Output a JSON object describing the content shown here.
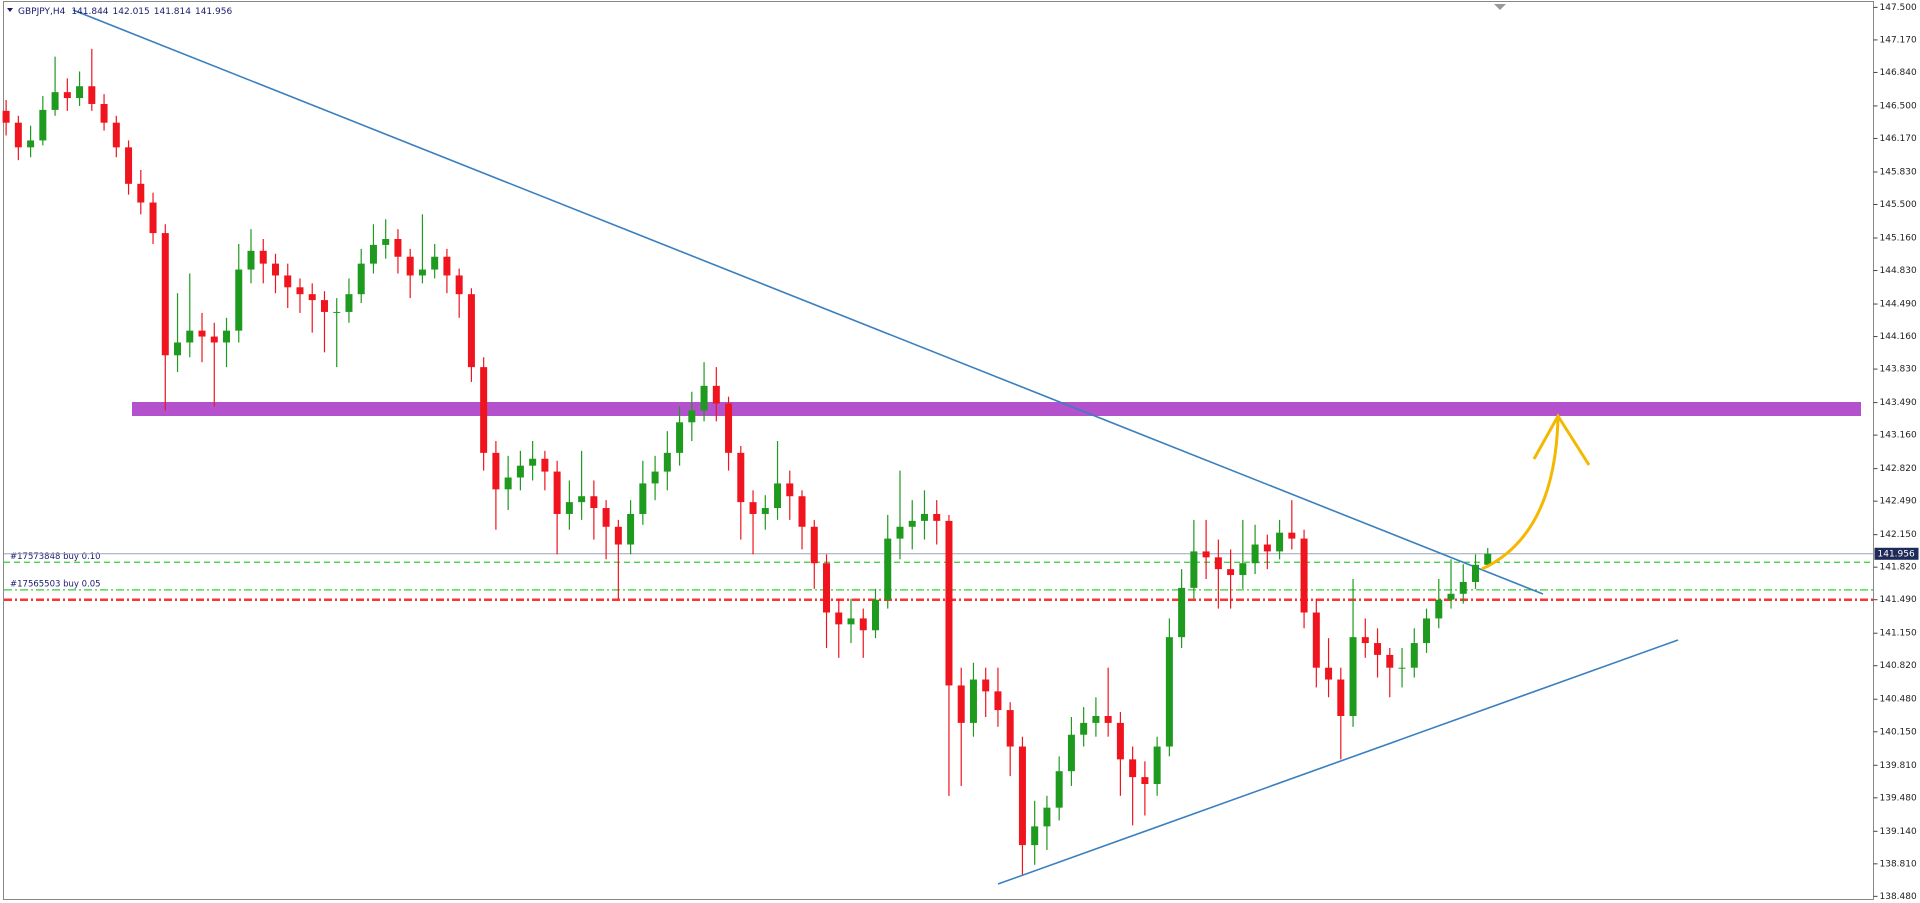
{
  "chart_data": {
    "type": "candlestick",
    "title": "GBPJPY,H4",
    "up_color": "#1e9a1e",
    "down_color": "#f0141e",
    "ylim": [
      138.443,
      147.575
    ],
    "yticks": [
      {
        "value": 147.5,
        "label": "147.500"
      },
      {
        "value": 147.17,
        "label": "147.170"
      },
      {
        "value": 146.84,
        "label": "146.840"
      },
      {
        "value": 146.5,
        "label": "146.500"
      },
      {
        "value": 146.17,
        "label": "146.170"
      },
      {
        "value": 145.83,
        "label": "145.830"
      },
      {
        "value": 145.5,
        "label": "145.500"
      },
      {
        "value": 145.16,
        "label": "145.160"
      },
      {
        "value": 144.83,
        "label": "144.830"
      },
      {
        "value": 144.49,
        "label": "144.490"
      },
      {
        "value": 144.16,
        "label": "144.160"
      },
      {
        "value": 143.83,
        "label": "143.830"
      },
      {
        "value": 143.49,
        "label": "143.490"
      },
      {
        "value": 143.16,
        "label": "143.160"
      },
      {
        "value": 142.82,
        "label": "142.820"
      },
      {
        "value": 142.49,
        "label": "142.490"
      },
      {
        "value": 142.15,
        "label": "142.150"
      },
      {
        "value": 141.82,
        "label": "141.820"
      },
      {
        "value": 141.49,
        "label": "141.490"
      },
      {
        "value": 141.15,
        "label": "141.150"
      },
      {
        "value": 140.82,
        "label": "140.820"
      },
      {
        "value": 140.48,
        "label": "140.480"
      },
      {
        "value": 140.15,
        "label": "140.150"
      },
      {
        "value": 139.81,
        "label": "139.810"
      },
      {
        "value": 139.48,
        "label": "139.480"
      },
      {
        "value": 139.14,
        "label": "139.140"
      },
      {
        "value": 138.81,
        "label": "138.810"
      },
      {
        "value": 138.48,
        "label": "138.480"
      }
    ],
    "orders": [
      {
        "label": "#17573848 buy 0.10",
        "price": 141.87,
        "color": "#33cc33",
        "dash": "6,4"
      },
      {
        "label": "#17565503 buy 0.05",
        "price": 141.59,
        "color": "#33cc33",
        "dash": "8,3,2,3"
      }
    ],
    "stop_line": {
      "price": 141.49,
      "color": "#ff3333",
      "dash": "8,3,2,3"
    },
    "candles": [
      [
        146.45,
        146.56,
        146.2,
        146.33
      ],
      [
        146.33,
        146.4,
        145.95,
        146.08
      ],
      [
        146.08,
        146.3,
        145.98,
        146.15
      ],
      [
        146.15,
        146.6,
        146.1,
        146.46
      ],
      [
        146.46,
        147.0,
        146.4,
        146.64
      ],
      [
        146.64,
        146.78,
        146.45,
        146.58
      ],
      [
        146.58,
        146.85,
        146.5,
        146.7
      ],
      [
        146.7,
        147.08,
        146.45,
        146.52
      ],
      [
        146.52,
        146.62,
        146.25,
        146.33
      ],
      [
        146.33,
        146.4,
        145.98,
        146.08
      ],
      [
        146.08,
        146.15,
        145.6,
        145.71
      ],
      [
        145.71,
        145.85,
        145.4,
        145.52
      ],
      [
        145.52,
        145.62,
        145.1,
        145.21
      ],
      [
        145.21,
        145.3,
        143.41,
        143.97
      ],
      [
        143.97,
        144.6,
        143.8,
        144.1
      ],
      [
        144.1,
        144.8,
        143.95,
        144.22
      ],
      [
        144.22,
        144.4,
        143.9,
        144.16
      ],
      [
        144.16,
        144.3,
        143.45,
        144.1
      ],
      [
        144.1,
        144.35,
        143.85,
        144.22
      ],
      [
        144.22,
        145.1,
        144.1,
        144.84
      ],
      [
        144.84,
        145.25,
        144.7,
        145.03
      ],
      [
        145.03,
        145.15,
        144.7,
        144.9
      ],
      [
        144.9,
        145.0,
        144.6,
        144.78
      ],
      [
        144.78,
        144.9,
        144.45,
        144.66
      ],
      [
        144.66,
        144.75,
        144.4,
        144.59
      ],
      [
        144.59,
        144.7,
        144.2,
        144.53
      ],
      [
        144.53,
        144.62,
        144.0,
        144.41
      ],
      [
        144.41,
        144.55,
        143.85,
        144.41
      ],
      [
        144.41,
        144.75,
        144.3,
        144.59
      ],
      [
        144.59,
        145.05,
        144.5,
        144.9
      ],
      [
        144.9,
        145.3,
        144.8,
        145.09
      ],
      [
        145.09,
        145.35,
        144.95,
        145.15
      ],
      [
        145.15,
        145.25,
        144.8,
        144.97
      ],
      [
        144.97,
        145.05,
        144.55,
        144.78
      ],
      [
        144.78,
        145.4,
        144.7,
        144.84
      ],
      [
        144.84,
        145.1,
        144.75,
        144.97
      ],
      [
        144.97,
        145.05,
        144.6,
        144.78
      ],
      [
        144.78,
        144.85,
        144.35,
        144.59
      ],
      [
        144.59,
        144.65,
        143.7,
        143.85
      ],
      [
        143.85,
        143.95,
        142.8,
        142.98
      ],
      [
        142.98,
        143.1,
        142.2,
        142.61
      ],
      [
        142.61,
        142.95,
        142.4,
        142.73
      ],
      [
        142.73,
        143.0,
        142.6,
        142.85
      ],
      [
        142.85,
        143.1,
        142.7,
        142.92
      ],
      [
        142.92,
        143.0,
        142.6,
        142.79
      ],
      [
        142.79,
        142.9,
        141.95,
        142.36
      ],
      [
        142.36,
        142.7,
        142.2,
        142.48
      ],
      [
        142.48,
        143.0,
        142.3,
        142.54
      ],
      [
        142.54,
        142.7,
        142.1,
        142.42
      ],
      [
        142.42,
        142.5,
        141.9,
        142.23
      ],
      [
        142.23,
        142.3,
        141.5,
        142.05
      ],
      [
        142.05,
        142.5,
        141.95,
        142.36
      ],
      [
        142.36,
        142.9,
        142.25,
        142.67
      ],
      [
        142.67,
        142.95,
        142.5,
        142.79
      ],
      [
        142.79,
        143.2,
        142.6,
        142.98
      ],
      [
        142.98,
        143.45,
        142.85,
        143.29
      ],
      [
        143.29,
        143.6,
        143.1,
        143.41
      ],
      [
        143.41,
        143.9,
        143.3,
        143.66
      ],
      [
        143.66,
        143.85,
        143.3,
        143.48
      ],
      [
        143.48,
        143.55,
        142.8,
        142.98
      ],
      [
        142.98,
        143.05,
        142.1,
        142.48
      ],
      [
        142.48,
        142.6,
        141.95,
        142.36
      ],
      [
        142.36,
        142.55,
        142.2,
        142.42
      ],
      [
        142.42,
        143.1,
        142.3,
        142.67
      ],
      [
        142.67,
        142.8,
        142.3,
        142.54
      ],
      [
        142.54,
        142.6,
        142.0,
        142.23
      ],
      [
        142.23,
        142.3,
        141.6,
        141.86
      ],
      [
        141.86,
        141.95,
        141.0,
        141.36
      ],
      [
        141.36,
        141.5,
        140.9,
        141.24
      ],
      [
        141.24,
        141.5,
        141.05,
        141.3
      ],
      [
        141.3,
        141.4,
        140.9,
        141.18
      ],
      [
        141.18,
        141.6,
        141.1,
        141.49
      ],
      [
        141.49,
        142.35,
        141.4,
        142.11
      ],
      [
        142.11,
        142.8,
        141.9,
        142.23
      ],
      [
        142.23,
        142.5,
        142.0,
        142.29
      ],
      [
        142.29,
        142.6,
        142.1,
        142.36
      ],
      [
        142.36,
        142.5,
        142.05,
        142.29
      ],
      [
        142.29,
        142.35,
        139.5,
        140.62
      ],
      [
        140.62,
        140.8,
        139.6,
        140.24
      ],
      [
        140.24,
        140.85,
        140.1,
        140.68
      ],
      [
        140.68,
        140.8,
        140.3,
        140.56
      ],
      [
        140.56,
        140.8,
        140.2,
        140.37
      ],
      [
        140.37,
        140.45,
        139.7,
        140.0
      ],
      [
        140.0,
        140.1,
        138.7,
        139.0
      ],
      [
        139.0,
        139.45,
        138.8,
        139.19
      ],
      [
        139.19,
        139.5,
        138.95,
        139.38
      ],
      [
        139.38,
        139.9,
        139.25,
        139.75
      ],
      [
        139.75,
        140.3,
        139.6,
        140.12
      ],
      [
        140.12,
        140.4,
        140.0,
        140.24
      ],
      [
        140.24,
        140.5,
        140.1,
        140.31
      ],
      [
        140.31,
        140.8,
        140.1,
        140.24
      ],
      [
        140.24,
        140.35,
        139.5,
        139.87
      ],
      [
        139.87,
        140.0,
        139.2,
        139.69
      ],
      [
        139.69,
        139.85,
        139.3,
        139.62
      ],
      [
        139.62,
        140.1,
        139.5,
        140.0
      ],
      [
        140.0,
        141.3,
        139.9,
        141.11
      ],
      [
        141.11,
        141.8,
        141.0,
        141.61
      ],
      [
        141.61,
        142.3,
        141.5,
        141.98
      ],
      [
        141.98,
        142.3,
        141.7,
        141.92
      ],
      [
        141.92,
        142.1,
        141.4,
        141.8
      ],
      [
        141.8,
        142.0,
        141.4,
        141.74
      ],
      [
        141.74,
        142.3,
        141.6,
        141.86
      ],
      [
        141.86,
        142.25,
        141.75,
        142.05
      ],
      [
        142.05,
        142.15,
        141.8,
        141.98
      ],
      [
        141.98,
        142.3,
        141.9,
        142.17
      ],
      [
        142.17,
        142.5,
        142.0,
        142.11
      ],
      [
        142.11,
        142.2,
        141.2,
        141.36
      ],
      [
        141.36,
        141.5,
        140.6,
        140.8
      ],
      [
        140.8,
        141.1,
        140.5,
        140.68
      ],
      [
        140.68,
        140.8,
        139.87,
        140.31
      ],
      [
        140.31,
        141.7,
        140.2,
        141.11
      ],
      [
        141.11,
        141.3,
        140.9,
        141.05
      ],
      [
        141.05,
        141.2,
        140.7,
        140.93
      ],
      [
        140.93,
        141.0,
        140.5,
        140.8
      ],
      [
        140.8,
        141.0,
        140.6,
        140.8
      ],
      [
        140.8,
        141.2,
        140.7,
        141.05
      ],
      [
        141.05,
        141.4,
        140.95,
        141.3
      ],
      [
        141.3,
        141.7,
        141.2,
        141.49
      ],
      [
        141.49,
        141.9,
        141.4,
        141.55
      ],
      [
        141.55,
        141.85,
        141.45,
        141.67
      ],
      [
        141.67,
        141.95,
        141.6,
        141.844
      ],
      [
        141.844,
        142.015,
        141.814,
        141.956
      ]
    ]
  }
}
